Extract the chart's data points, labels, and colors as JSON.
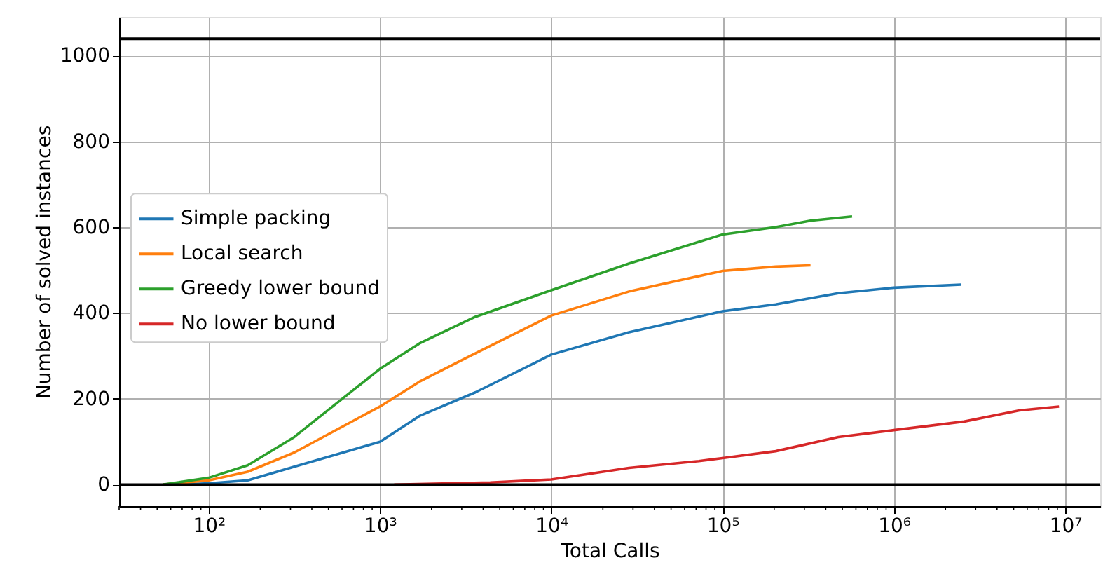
{
  "chart_data": {
    "type": "line",
    "xlabel": "Total Calls",
    "ylabel": "Number of solved instances",
    "log": "x",
    "grid": true,
    "legend": "left",
    "marker": "none",
    "line_style": "solid",
    "xlim": [
      30,
      16000000
    ],
    "ylim": [
      -50,
      1090
    ],
    "xticks": [
      {
        "value": 100,
        "label": "10²"
      },
      {
        "value": 1000,
        "label": "10³"
      },
      {
        "value": 10000,
        "label": "10⁴"
      },
      {
        "value": 100000,
        "label": "10⁵"
      },
      {
        "value": 1000000,
        "label": "10⁶"
      },
      {
        "value": 10000000,
        "label": "10⁷"
      },
      {
        "value": 30,
        "label": null
      },
      {
        "value": 40,
        "label": null
      },
      {
        "value": 50,
        "label": null
      },
      {
        "value": 60,
        "label": null
      },
      {
        "value": 70,
        "label": null
      },
      {
        "value": 80,
        "label": null
      },
      {
        "value": 90,
        "label": null
      },
      {
        "value": 200,
        "label": null
      },
      {
        "value": 300,
        "label": null
      },
      {
        "value": 400,
        "label": null
      },
      {
        "value": 500,
        "label": null
      },
      {
        "value": 600,
        "label": null
      },
      {
        "value": 700,
        "label": null
      },
      {
        "value": 800,
        "label": null
      },
      {
        "value": 900,
        "label": null
      },
      {
        "value": 2000,
        "label": null
      },
      {
        "value": 3000,
        "label": null
      },
      {
        "value": 4000,
        "label": null
      },
      {
        "value": 5000,
        "label": null
      },
      {
        "value": 6000,
        "label": null
      },
      {
        "value": 7000,
        "label": null
      },
      {
        "value": 8000,
        "label": null
      },
      {
        "value": 9000,
        "label": null
      },
      {
        "value": 20000,
        "label": null
      },
      {
        "value": 30000,
        "label": null
      },
      {
        "value": 40000,
        "label": null
      },
      {
        "value": 50000,
        "label": null
      },
      {
        "value": 60000,
        "label": null
      },
      {
        "value": 70000,
        "label": null
      },
      {
        "value": 80000,
        "label": null
      },
      {
        "value": 90000,
        "label": null
      },
      {
        "value": 200000,
        "label": null
      },
      {
        "value": 300000,
        "label": null
      },
      {
        "value": 400000,
        "label": null
      },
      {
        "value": 500000,
        "label": null
      },
      {
        "value": 600000,
        "label": null
      },
      {
        "value": 700000,
        "label": null
      },
      {
        "value": 800000,
        "label": null
      },
      {
        "value": 900000,
        "label": null
      },
      {
        "value": 2000000,
        "label": null
      },
      {
        "value": 3000000,
        "label": null
      },
      {
        "value": 4000000,
        "label": null
      },
      {
        "value": 5000000,
        "label": null
      },
      {
        "value": 6000000,
        "label": null
      },
      {
        "value": 7000000,
        "label": null
      },
      {
        "value": 8000000,
        "label": null
      },
      {
        "value": 9000000,
        "label": null
      }
    ],
    "yticks": [
      0,
      200,
      400,
      600,
      800,
      1000
    ],
    "ref_lines": [
      {
        "axis": "y",
        "value": 0,
        "color": "#000000"
      },
      {
        "axis": "y",
        "value": 1039,
        "color": "#000000"
      }
    ],
    "series": [
      {
        "name": "Simple packing",
        "color": "#1f77b4",
        "x": [
          63,
          100,
          169,
          316,
          1000,
          1700,
          3600,
          10000,
          28400,
          100000,
          204000,
          474000,
          1000000,
          2470000
        ],
        "values": [
          0,
          3,
          10,
          42,
          100,
          160,
          215,
          303,
          355,
          404,
          420,
          446,
          459,
          466
        ]
      },
      {
        "name": "Local search",
        "color": "#ff7f0e",
        "x": [
          54,
          100,
          169,
          316,
          1000,
          1700,
          3600,
          10000,
          28400,
          100000,
          204000,
          326000
        ],
        "values": [
          0,
          10,
          30,
          75,
          182,
          240,
          306,
          394,
          450,
          498,
          508,
          511
        ]
      },
      {
        "name": "Greedy lower bound",
        "color": "#2ca02c",
        "x": [
          54,
          100,
          169,
          316,
          1000,
          1700,
          3600,
          10000,
          28400,
          100000,
          204000,
          326000,
          570000
        ],
        "values": [
          0,
          16,
          45,
          111,
          270,
          329,
          391,
          453,
          515,
          583,
          600,
          615,
          625
        ]
      },
      {
        "name": "No lower bound",
        "color": "#d62728",
        "x": [
          1210,
          4400,
          10000,
          28400,
          72600,
          100000,
          204000,
          474000,
          1000000,
          2570000,
          5400000,
          9200000
        ],
        "values": [
          0,
          5,
          12,
          39,
          55,
          62,
          78,
          111,
          127,
          147,
          173,
          182
        ]
      }
    ]
  }
}
